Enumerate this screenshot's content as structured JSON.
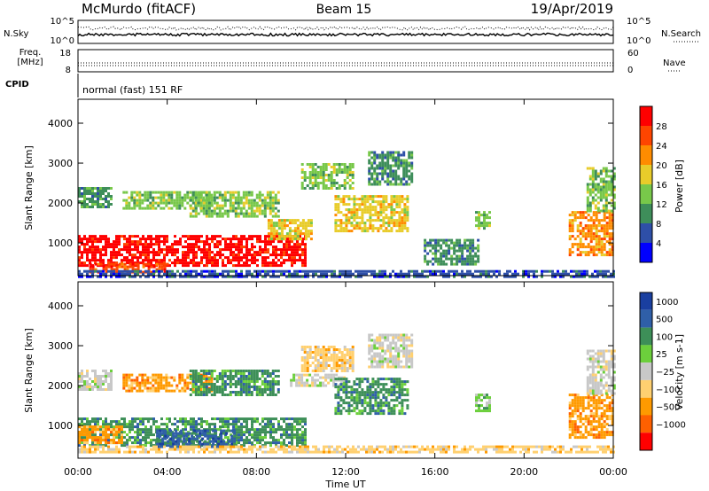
{
  "header": {
    "station": "McMurdo (fitACF)",
    "beam": "Beam 15",
    "date": "19/Apr/2019"
  },
  "top_panel": {
    "left_label": "N.Sky",
    "right_label": "N.Search",
    "ticks_left": [
      "10^5",
      "10^0"
    ],
    "ticks_right": [
      "10^5",
      "10^0"
    ]
  },
  "freq_panel": {
    "left_label_1": "Freq.",
    "left_label_2": "[MHz]",
    "ticks_left": [
      "18",
      "8"
    ],
    "right_label": "Nave",
    "ticks_right": [
      "60",
      "0"
    ],
    "line_freq_mhz": 11,
    "line_nave": 10
  },
  "cpid": {
    "label": "CPID",
    "text": "normal (fast) 151 RF"
  },
  "colors": {
    "power": [
      "#0000ff",
      "#2e4fa8",
      "#3e8e5a",
      "#78c84a",
      "#e8cc2a",
      "#ff8c00",
      "#ff4500",
      "#ff0000"
    ],
    "velocity": [
      "#ff0000",
      "#ff6000",
      "#ff9a00",
      "#ffd070",
      "#c8c8c8",
      "#6ccf3c",
      "#3d8f58",
      "#2f5fa8",
      "#1a3fa0"
    ]
  },
  "chart_data": [
    {
      "type": "heatmap",
      "name": "power",
      "ylabel": "Slant Range [km]",
      "x_ticks": [
        "00:00",
        "04:00",
        "08:00",
        "12:00",
        "16:00",
        "20:00",
        "00:00"
      ],
      "y_ticks": [
        "1000",
        "2000",
        "3000",
        "4000"
      ],
      "xlim_hours": [
        0,
        24
      ],
      "ylim_km": [
        180,
        4600
      ],
      "colorbar": {
        "label": "Power [dB]",
        "ticks": [
          "4",
          "8",
          "12",
          "16",
          "20",
          "24",
          "28"
        ],
        "range": [
          0,
          32
        ]
      },
      "regions": [
        {
          "t0": 0.0,
          "t1": 10.2,
          "r0": 450,
          "r1": 1200,
          "level": 7
        },
        {
          "t0": 0.5,
          "t1": 4.0,
          "r0": 300,
          "r1": 500,
          "level": 6
        },
        {
          "t0": 8.5,
          "t1": 10.5,
          "r0": 1100,
          "r1": 1600,
          "level": 4
        },
        {
          "t0": 0.0,
          "t1": 1.5,
          "r0": 1900,
          "r1": 2400,
          "level": 2
        },
        {
          "t0": 2.0,
          "t1": 6.0,
          "r0": 1900,
          "r1": 2300,
          "level": 3
        },
        {
          "t0": 5.0,
          "t1": 9.0,
          "r0": 1700,
          "r1": 2300,
          "level": 3
        },
        {
          "t0": 10.0,
          "t1": 12.3,
          "r0": 2400,
          "r1": 3000,
          "level": 3
        },
        {
          "t0": 11.5,
          "t1": 14.8,
          "r0": 1300,
          "r1": 2200,
          "level": 4
        },
        {
          "t0": 13.0,
          "t1": 15.0,
          "r0": 2500,
          "r1": 3300,
          "level": 2
        },
        {
          "t0": 17.8,
          "t1": 18.4,
          "r0": 1400,
          "r1": 1800,
          "level": 3
        },
        {
          "t0": 15.5,
          "t1": 18.0,
          "r0": 500,
          "r1": 1100,
          "level": 2
        },
        {
          "t0": 22.0,
          "t1": 24.0,
          "r0": 700,
          "r1": 1800,
          "level": 5
        },
        {
          "t0": 22.8,
          "t1": 24.0,
          "r0": 1800,
          "r1": 2900,
          "level": 3
        },
        {
          "t0": 0.0,
          "t1": 24.0,
          "r0": 180,
          "r1": 320,
          "level": 1
        }
      ]
    },
    {
      "type": "heatmap",
      "name": "velocity",
      "ylabel": "Slant Range [km]",
      "xlabel": "Time UT",
      "x_ticks": [
        "00:00",
        "04:00",
        "08:00",
        "12:00",
        "16:00",
        "20:00",
        "00:00"
      ],
      "y_ticks": [
        "1000",
        "2000",
        "3000",
        "4000"
      ],
      "xlim_hours": [
        0,
        24
      ],
      "ylim_km": [
        180,
        4600
      ],
      "colorbar": {
        "label": "Velocity [m s-1]",
        "ticks": [
          "1000",
          "500",
          "100",
          "25",
          "−25",
          "−100",
          "−500",
          "−1000"
        ],
        "range": [
          -1000,
          1000
        ]
      },
      "regions": [
        {
          "t0": 0.0,
          "t1": 10.2,
          "r0": 500,
          "r1": 1200,
          "level": 6
        },
        {
          "t0": 3.5,
          "t1": 7.0,
          "r0": 500,
          "r1": 900,
          "level": 7
        },
        {
          "t0": 0.0,
          "t1": 2.0,
          "r0": 600,
          "r1": 1000,
          "level": 2
        },
        {
          "t0": 0.0,
          "t1": 24.0,
          "r0": 350,
          "r1": 500,
          "level": 3
        },
        {
          "t0": 0.0,
          "t1": 1.5,
          "r0": 1900,
          "r1": 2400,
          "level": 4
        },
        {
          "t0": 2.0,
          "t1": 6.0,
          "r0": 1900,
          "r1": 2300,
          "level": 2
        },
        {
          "t0": 5.0,
          "t1": 9.0,
          "r0": 1800,
          "r1": 2400,
          "level": 6
        },
        {
          "t0": 9.5,
          "t1": 12.0,
          "r0": 2000,
          "r1": 2300,
          "level": 4
        },
        {
          "t0": 10.0,
          "t1": 12.3,
          "r0": 2400,
          "r1": 3000,
          "level": 3
        },
        {
          "t0": 11.5,
          "t1": 14.8,
          "r0": 1300,
          "r1": 2200,
          "level": 6
        },
        {
          "t0": 13.0,
          "t1": 15.0,
          "r0": 2500,
          "r1": 3300,
          "level": 4
        },
        {
          "t0": 17.8,
          "t1": 18.4,
          "r0": 1400,
          "r1": 1800,
          "level": 5
        },
        {
          "t0": 22.0,
          "t1": 24.0,
          "r0": 700,
          "r1": 1800,
          "level": 2
        },
        {
          "t0": 22.8,
          "t1": 24.0,
          "r0": 1800,
          "r1": 2900,
          "level": 4
        }
      ]
    }
  ]
}
